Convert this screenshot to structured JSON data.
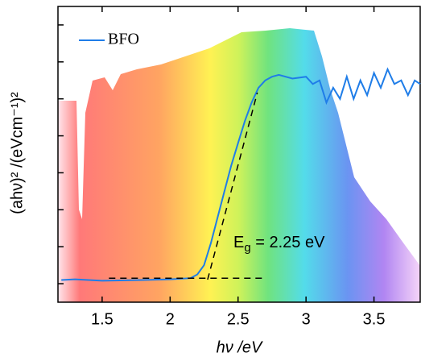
{
  "chart_data": {
    "type": "line",
    "x_label": "hν /eV",
    "y_label": "(ahν)² /(eVcm⁻¹)²",
    "xlim": [
      1.175,
      3.84
    ],
    "xticks": [
      1.5,
      2.0,
      2.5,
      3.0,
      3.5
    ],
    "ylim": [
      0,
      8
    ],
    "yticks": [
      0.5,
      1.5,
      2.5,
      3.5,
      4.5,
      5.5,
      6.5,
      7.5
    ],
    "legend": "top-left",
    "series": [
      {
        "name": "BFO",
        "color": "#1f7de8",
        "x": [
          1.2,
          1.3,
          1.5,
          1.8,
          2.0,
          2.15,
          2.2,
          2.25,
          2.3,
          2.35,
          2.4,
          2.45,
          2.5,
          2.55,
          2.6,
          2.65,
          2.7,
          2.75,
          2.8,
          2.9,
          3.0,
          3.05,
          3.1,
          3.15,
          3.2,
          3.25,
          3.3,
          3.35,
          3.4,
          3.45,
          3.5,
          3.55,
          3.6,
          3.65,
          3.7,
          3.75,
          3.8,
          3.84
        ],
        "values": [
          0.6,
          0.62,
          0.58,
          0.6,
          0.62,
          0.65,
          0.75,
          1.0,
          1.6,
          2.3,
          3.0,
          3.7,
          4.3,
          4.9,
          5.4,
          5.8,
          6.0,
          6.1,
          6.15,
          6.05,
          6.1,
          5.9,
          6.0,
          5.4,
          5.8,
          5.5,
          6.1,
          5.5,
          6.0,
          5.6,
          6.2,
          5.8,
          6.3,
          5.9,
          6.0,
          5.6,
          6.0,
          5.9
        ]
      }
    ],
    "fit_lines": [
      {
        "x": [
          2.276,
          2.642
        ],
        "values": [
          0.61,
          5.67
        ]
      },
      {
        "x": [
          1.55,
          2.68
        ],
        "values": [
          0.65,
          0.65
        ]
      }
    ],
    "annotation": {
      "text": "E",
      "subscript": "g",
      "rest": " = 2.25 eV"
    }
  }
}
